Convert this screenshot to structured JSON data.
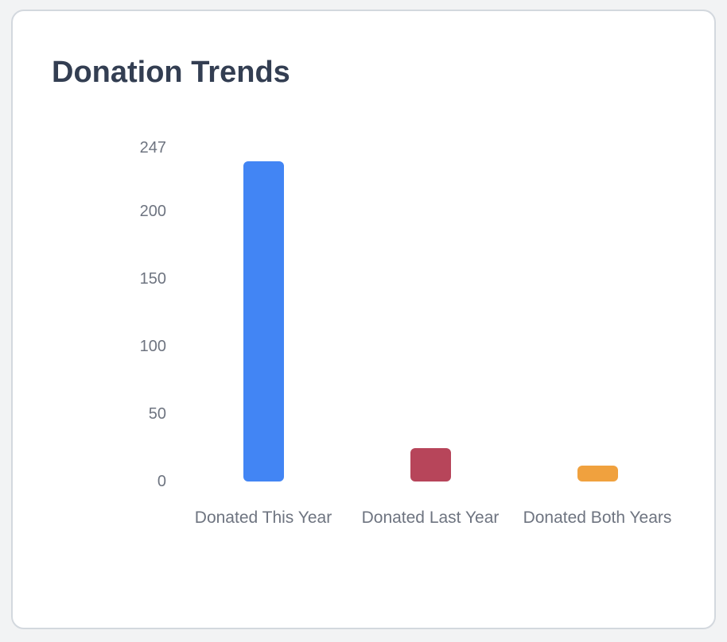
{
  "page": {
    "background_color": "#f2f3f4"
  },
  "card": {
    "background_color": "#ffffff",
    "border_color": "#d3d8de"
  },
  "chart_data": {
    "type": "bar",
    "title": "Donation Trends",
    "categories": [
      "Donated This Year",
      "Donated Last Year",
      "Donated Both Years"
    ],
    "values": [
      237,
      25,
      12
    ],
    "bar_colors": [
      "#4285f4",
      "#b7455a",
      "#f0a13e"
    ],
    "yticks": [
      0,
      50,
      100,
      150,
      200,
      247
    ],
    "ylim": [
      0,
      247
    ],
    "xlabel": "",
    "ylabel": "",
    "grid": false,
    "legend": false,
    "title_color": "#333e52",
    "axis_label_color": "#6e7480"
  }
}
